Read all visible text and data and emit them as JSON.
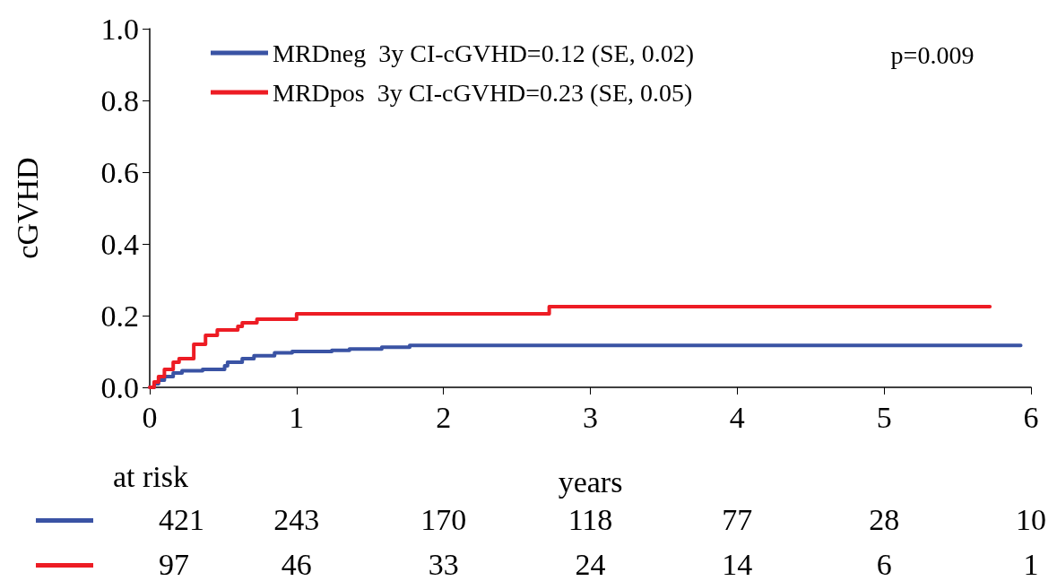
{
  "chart_data": {
    "type": "step",
    "xlabel": "years",
    "ylabel": "cGVHD",
    "xlim": [
      0,
      6
    ],
    "xticks": [
      0,
      1,
      2,
      3,
      4,
      5,
      6
    ],
    "ylim": [
      0,
      1
    ],
    "yticks": [
      {
        "value": 0,
        "label": "0.0"
      },
      {
        "value": 0.2,
        "label": "0.2"
      },
      {
        "value": 0.4,
        "label": "0.4"
      },
      {
        "value": 0.6,
        "label": "0.6"
      },
      {
        "value": 0.8,
        "label": "0.8"
      },
      {
        "value": 1,
        "label": "1.0"
      }
    ],
    "grid": false,
    "legend": "top",
    "marker": "none",
    "line_style": "solid",
    "series": [
      {
        "name": "MRDneg  3y CI-cGVHD=0.12 (SE, 0.02)",
        "color": "#3a53a4",
        "x": [
          0,
          0.03,
          0.06,
          0.1,
          0.16,
          0.22,
          0.36,
          0.51,
          0.53,
          0.63,
          0.71,
          0.85,
          0.97,
          1.24,
          1.36,
          1.58,
          1.77,
          5.93
        ],
        "values": [
          0,
          0.01,
          0.02,
          0.03,
          0.04,
          0.046,
          0.05,
          0.06,
          0.07,
          0.08,
          0.088,
          0.096,
          0.1,
          0.103,
          0.107,
          0.112,
          0.117,
          0.117
        ]
      },
      {
        "name": "MRDpos  3y CI-cGVHD=0.23 (SE, 0.05)",
        "color": "#ed1c24",
        "x": [
          0,
          0.03,
          0.06,
          0.1,
          0.16,
          0.2,
          0.3,
          0.38,
          0.46,
          0.6,
          0.63,
          0.73,
          1.0,
          2.72,
          5.72
        ],
        "values": [
          0,
          0.015,
          0.03,
          0.05,
          0.07,
          0.08,
          0.12,
          0.145,
          0.16,
          0.17,
          0.18,
          0.19,
          0.205,
          0.225,
          0.225
        ]
      }
    ],
    "annotations": [
      "p=0.009",
      "at risk",
      "421",
      "243",
      "170",
      "118",
      "77",
      "28",
      "10",
      "97",
      "46",
      "33",
      "24",
      "14",
      "6",
      "1"
    ]
  }
}
